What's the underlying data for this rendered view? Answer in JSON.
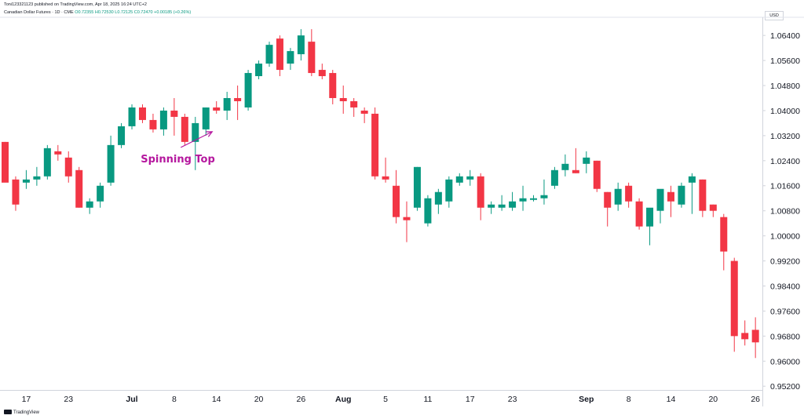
{
  "header": {
    "published_line": "Toni123321123 published on TradingView.com, Apr 18, 2025 16:24 UTC+2",
    "symbol_line": "Canadian Dollar Futures · 1D · CME",
    "ohlc_line": "O0.72355 H0.72530 L0.72125 C0.72470 +0.00185 (+0.26%)",
    "currency_button": "USD"
  },
  "footer": {
    "logo_text": "TradingView"
  },
  "colors": {
    "up": "#089981",
    "down": "#f23645",
    "annotation": "#b5179e",
    "axis_line": "#d1d4dc",
    "text": "#131722"
  },
  "annotation": {
    "text": "Spinning Top",
    "points_to_index": 19
  },
  "chart_data": {
    "type": "candlestick",
    "title": "",
    "xlabel": "",
    "ylabel": "",
    "ylim": [
      0.9508,
      1.0698
    ],
    "grid": false,
    "y_ticks": [
      "1.06400",
      "1.05600",
      "1.04800",
      "1.04000",
      "1.03200",
      "1.02400",
      "1.01600",
      "1.00800",
      "1.00000",
      "0.99200",
      "0.98400",
      "0.97600",
      "0.96800",
      "0.96000",
      "0.95200"
    ],
    "x_ticks": [
      {
        "label": "17",
        "index": 2,
        "bold": false
      },
      {
        "label": "23",
        "index": 6,
        "bold": false
      },
      {
        "label": "Jul",
        "index": 12,
        "bold": true
      },
      {
        "label": "8",
        "index": 16,
        "bold": false
      },
      {
        "label": "14",
        "index": 20,
        "bold": false
      },
      {
        "label": "20",
        "index": 24,
        "bold": false
      },
      {
        "label": "26",
        "index": 28,
        "bold": false
      },
      {
        "label": "Aug",
        "index": 32,
        "bold": true
      },
      {
        "label": "5",
        "index": 36,
        "bold": false
      },
      {
        "label": "11",
        "index": 40,
        "bold": false
      },
      {
        "label": "17",
        "index": 44,
        "bold": false
      },
      {
        "label": "23",
        "index": 48,
        "bold": false
      },
      {
        "label": "Sep",
        "index": 55,
        "bold": true
      },
      {
        "label": "8",
        "index": 59,
        "bold": false
      },
      {
        "label": "14",
        "index": 63,
        "bold": false
      },
      {
        "label": "20",
        "index": 67,
        "bold": false
      },
      {
        "label": "26",
        "index": 71,
        "bold": false
      }
    ],
    "candles": [
      {
        "o": 1.03,
        "h": 1.03,
        "l": 1.018,
        "c": 1.017
      },
      {
        "o": 1.018,
        "h": 1.019,
        "l": 1.008,
        "c": 1.01
      },
      {
        "o": 1.017,
        "h": 1.021,
        "l": 1.015,
        "c": 1.018
      },
      {
        "o": 1.018,
        "h": 1.022,
        "l": 1.016,
        "c": 1.019
      },
      {
        "o": 1.019,
        "h": 1.029,
        "l": 1.018,
        "c": 1.028
      },
      {
        "o": 1.027,
        "h": 1.029,
        "l": 1.024,
        "c": 1.026
      },
      {
        "o": 1.025,
        "h": 1.027,
        "l": 1.017,
        "c": 1.019
      },
      {
        "o": 1.021,
        "h": 1.022,
        "l": 1.009,
        "c": 1.009
      },
      {
        "o": 1.009,
        "h": 1.012,
        "l": 1.007,
        "c": 1.011
      },
      {
        "o": 1.011,
        "h": 1.017,
        "l": 1.009,
        "c": 1.016
      },
      {
        "o": 1.017,
        "h": 1.032,
        "l": 1.016,
        "c": 1.029
      },
      {
        "o": 1.029,
        "h": 1.036,
        "l": 1.028,
        "c": 1.035
      },
      {
        "o": 1.035,
        "h": 1.042,
        "l": 1.034,
        "c": 1.041
      },
      {
        "o": 1.041,
        "h": 1.042,
        "l": 1.036,
        "c": 1.037
      },
      {
        "o": 1.037,
        "h": 1.039,
        "l": 1.033,
        "c": 1.034
      },
      {
        "o": 1.034,
        "h": 1.041,
        "l": 1.032,
        "c": 1.04
      },
      {
        "o": 1.04,
        "h": 1.044,
        "l": 1.032,
        "c": 1.038
      },
      {
        "o": 1.038,
        "h": 1.039,
        "l": 1.029,
        "c": 1.03
      },
      {
        "o": 1.03,
        "h": 1.038,
        "l": 1.021,
        "c": 1.036
      },
      {
        "o": 1.034,
        "h": 1.041,
        "l": 1.032,
        "c": 1.041
      },
      {
        "o": 1.041,
        "h": 1.043,
        "l": 1.039,
        "c": 1.04
      },
      {
        "o": 1.04,
        "h": 1.046,
        "l": 1.037,
        "c": 1.044
      },
      {
        "o": 1.044,
        "h": 1.048,
        "l": 1.037,
        "c": 1.043
      },
      {
        "o": 1.041,
        "h": 1.053,
        "l": 1.04,
        "c": 1.052
      },
      {
        "o": 1.051,
        "h": 1.056,
        "l": 1.05,
        "c": 1.055
      },
      {
        "o": 1.055,
        "h": 1.062,
        "l": 1.054,
        "c": 1.061
      },
      {
        "o": 1.063,
        "h": 1.064,
        "l": 1.051,
        "c": 1.053
      },
      {
        "o": 1.055,
        "h": 1.06,
        "l": 1.053,
        "c": 1.059
      },
      {
        "o": 1.058,
        "h": 1.066,
        "l": 1.056,
        "c": 1.064
      },
      {
        "o": 1.062,
        "h": 1.066,
        "l": 1.051,
        "c": 1.052
      },
      {
        "o": 1.053,
        "h": 1.055,
        "l": 1.05,
        "c": 1.051
      },
      {
        "o": 1.052,
        "h": 1.053,
        "l": 1.042,
        "c": 1.044
      },
      {
        "o": 1.044,
        "h": 1.048,
        "l": 1.039,
        "c": 1.043
      },
      {
        "o": 1.043,
        "h": 1.044,
        "l": 1.038,
        "c": 1.041
      },
      {
        "o": 1.04,
        "h": 1.041,
        "l": 1.036,
        "c": 1.039
      },
      {
        "o": 1.039,
        "h": 1.041,
        "l": 1.018,
        "c": 1.019
      },
      {
        "o": 1.019,
        "h": 1.025,
        "l": 1.017,
        "c": 1.018
      },
      {
        "o": 1.016,
        "h": 1.021,
        "l": 1.004,
        "c": 1.006
      },
      {
        "o": 1.006,
        "h": 1.011,
        "l": 0.998,
        "c": 1.005
      },
      {
        "o": 1.009,
        "h": 1.022,
        "l": 1.008,
        "c": 1.022
      },
      {
        "o": 1.004,
        "h": 1.013,
        "l": 1.003,
        "c": 1.012
      },
      {
        "o": 1.01,
        "h": 1.015,
        "l": 1.007,
        "c": 1.014
      },
      {
        "o": 1.011,
        "h": 1.019,
        "l": 1.009,
        "c": 1.018
      },
      {
        "o": 1.017,
        "h": 1.02,
        "l": 1.016,
        "c": 1.019
      },
      {
        "o": 1.018,
        "h": 1.021,
        "l": 1.016,
        "c": 1.019
      },
      {
        "o": 1.019,
        "h": 1.02,
        "l": 1.005,
        "c": 1.009
      },
      {
        "o": 1.009,
        "h": 1.011,
        "l": 1.007,
        "c": 1.01
      },
      {
        "o": 1.009,
        "h": 1.013,
        "l": 1.008,
        "c": 1.01
      },
      {
        "o": 1.009,
        "h": 1.014,
        "l": 1.008,
        "c": 1.011
      },
      {
        "o": 1.011,
        "h": 1.016,
        "l": 1.008,
        "c": 1.012
      },
      {
        "o": 1.012,
        "h": 1.013,
        "l": 1.011,
        "c": 1.012
      },
      {
        "o": 1.012,
        "h": 1.018,
        "l": 1.01,
        "c": 1.013
      },
      {
        "o": 1.016,
        "h": 1.022,
        "l": 1.015,
        "c": 1.021
      },
      {
        "o": 1.021,
        "h": 1.026,
        "l": 1.019,
        "c": 1.023
      },
      {
        "o": 1.021,
        "h": 1.028,
        "l": 1.02,
        "c": 1.02
      },
      {
        "o": 1.023,
        "h": 1.027,
        "l": 1.02,
        "c": 1.025
      },
      {
        "o": 1.024,
        "h": 1.024,
        "l": 1.014,
        "c": 1.015
      },
      {
        "o": 1.014,
        "h": 1.014,
        "l": 1.003,
        "c": 1.009
      },
      {
        "o": 1.01,
        "h": 1.017,
        "l": 1.008,
        "c": 1.015
      },
      {
        "o": 1.016,
        "h": 1.017,
        "l": 1.009,
        "c": 1.011
      },
      {
        "o": 1.011,
        "h": 1.012,
        "l": 1.002,
        "c": 1.003
      },
      {
        "o": 1.003,
        "h": 1.008,
        "l": 0.997,
        "c": 1.009
      },
      {
        "o": 1.008,
        "h": 1.014,
        "l": 1.004,
        "c": 1.015
      },
      {
        "o": 1.014,
        "h": 1.016,
        "l": 1.006,
        "c": 1.011
      },
      {
        "o": 1.01,
        "h": 1.017,
        "l": 1.009,
        "c": 1.016
      },
      {
        "o": 1.017,
        "h": 1.02,
        "l": 1.007,
        "c": 1.019
      },
      {
        "o": 1.018,
        "h": 1.018,
        "l": 1.006,
        "c": 1.008
      },
      {
        "o": 1.01,
        "h": 1.01,
        "l": 1.006,
        "c": 1.008
      },
      {
        "o": 1.006,
        "h": 1.007,
        "l": 0.989,
        "c": 0.995
      },
      {
        "o": 0.992,
        "h": 0.993,
        "l": 0.963,
        "c": 0.968
      },
      {
        "o": 0.969,
        "h": 0.973,
        "l": 0.965,
        "c": 0.967
      },
      {
        "o": 0.97,
        "h": 0.974,
        "l": 0.961,
        "c": 0.966
      }
    ]
  }
}
